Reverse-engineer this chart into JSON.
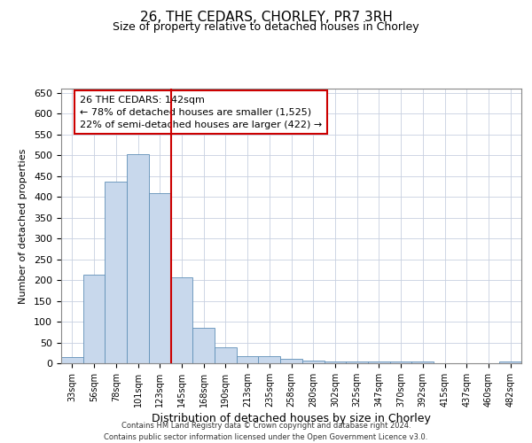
{
  "title_line1": "26, THE CEDARS, CHORLEY, PR7 3RH",
  "title_line2": "Size of property relative to detached houses in Chorley",
  "xlabel": "Distribution of detached houses by size in Chorley",
  "ylabel": "Number of detached properties",
  "footer_line1": "Contains HM Land Registry data © Crown copyright and database right 2024.",
  "footer_line2": "Contains public sector information licensed under the Open Government Licence v3.0.",
  "annotation_line1": "26 THE CEDARS: 142sqm",
  "annotation_line2": "← 78% of detached houses are smaller (1,525)",
  "annotation_line3": "22% of semi-detached houses are larger (422) →",
  "bar_color": "#c8d8ec",
  "bar_edge_color": "#6090b8",
  "vline_color": "#cc0000",
  "grid_color": "#c8d0e0",
  "background_color": "#ffffff",
  "categories": [
    "33sqm",
    "56sqm",
    "78sqm",
    "101sqm",
    "123sqm",
    "145sqm",
    "168sqm",
    "190sqm",
    "213sqm",
    "235sqm",
    "258sqm",
    "280sqm",
    "302sqm",
    "325sqm",
    "347sqm",
    "370sqm",
    "392sqm",
    "415sqm",
    "437sqm",
    "460sqm",
    "482sqm"
  ],
  "values": [
    15,
    212,
    436,
    502,
    408,
    207,
    85,
    38,
    18,
    18,
    10,
    6,
    4,
    4,
    4,
    4,
    4,
    0,
    0,
    0,
    4
  ],
  "ylim": [
    0,
    660
  ],
  "yticks": [
    0,
    50,
    100,
    150,
    200,
    250,
    300,
    350,
    400,
    450,
    500,
    550,
    600,
    650
  ],
  "vline_x_index": 4.5,
  "title_fontsize": 11,
  "subtitle_fontsize": 9,
  "xlabel_fontsize": 9,
  "ylabel_fontsize": 8,
  "ytick_fontsize": 8,
  "xtick_fontsize": 7,
  "footer_fontsize": 6,
  "annotation_fontsize": 8
}
